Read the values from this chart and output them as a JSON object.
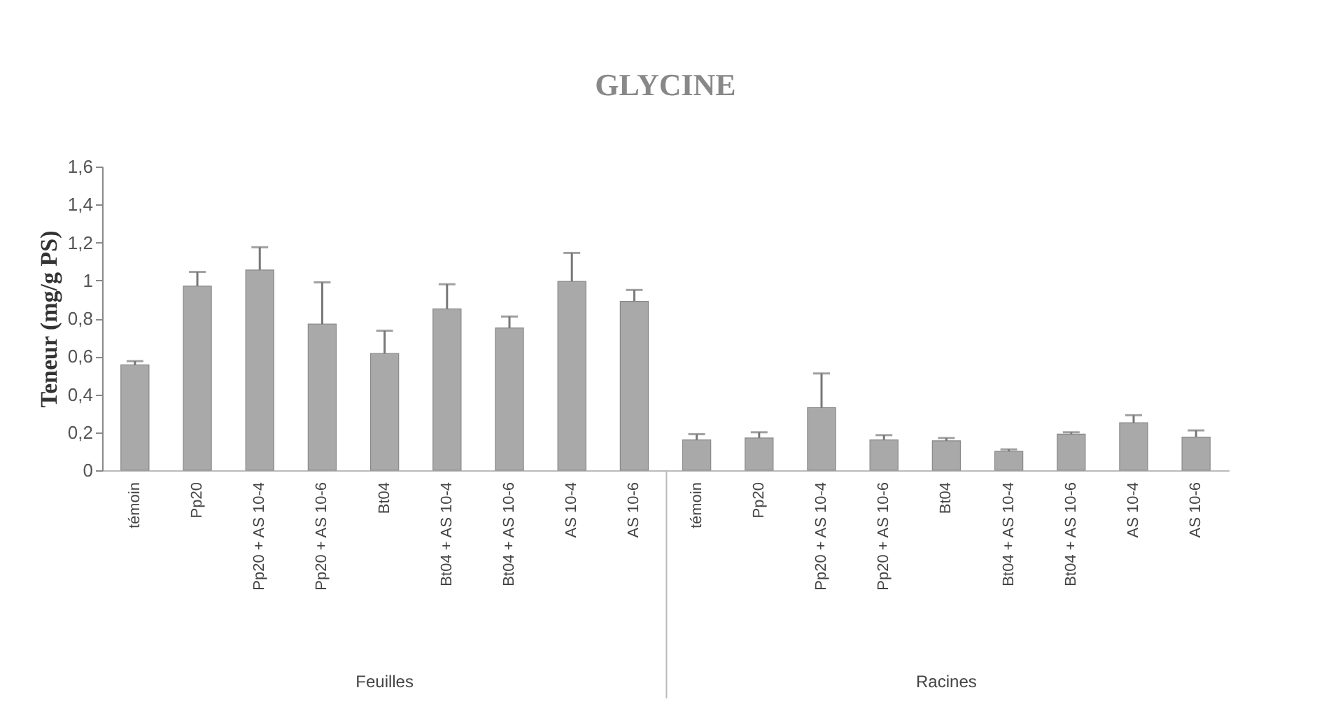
{
  "chart_data": {
    "type": "bar",
    "title": "GLYCINE",
    "ylabel": "Teneur (mg/g PS)",
    "categories": [
      "témoin",
      "Pp20",
      "Pp20 + AS 10-4",
      "Pp20 + AS 10-6",
      "Bt04",
      "Bt04 + AS 10-4",
      "Bt04 + AS 10-6",
      "AS 10-4",
      "AS 10-6",
      "témoin",
      "Pp20",
      "Pp20 + AS 10-4",
      "Pp20 + AS 10-6",
      "Bt04",
      "Bt04 + AS 10-4",
      "Bt04 + AS 10-6",
      "AS 10-4",
      "AS 10-6"
    ],
    "values": [
      0.555,
      0.97,
      1.055,
      0.77,
      0.615,
      0.85,
      0.75,
      0.995,
      0.89,
      0.16,
      0.17,
      0.33,
      0.16,
      0.155,
      0.1,
      0.19,
      0.25,
      0.175
    ],
    "errors": [
      [
        0.555,
        0.575
      ],
      [
        0.97,
        1.045
      ],
      [
        1.055,
        1.175
      ],
      [
        0.77,
        0.99
      ],
      [
        0.615,
        0.735
      ],
      [
        0.85,
        0.98
      ],
      [
        0.75,
        0.81
      ],
      [
        0.995,
        1.145
      ],
      [
        0.89,
        0.95
      ],
      [
        0.16,
        0.19
      ],
      [
        0.17,
        0.2
      ],
      [
        0.33,
        0.51
      ],
      [
        0.16,
        0.185
      ],
      [
        0.155,
        0.17
      ],
      [
        0.1,
        0.11
      ],
      [
        0.19,
        0.2
      ],
      [
        0.25,
        0.29
      ],
      [
        0.175,
        0.21
      ]
    ],
    "color": "#a9a9a9",
    "ylim": [
      0,
      1.6
    ],
    "yticks": [
      {
        "value": 0,
        "label": "0"
      },
      {
        "value": 0.2,
        "label": "0,2"
      },
      {
        "value": 0.4,
        "label": "0,4"
      },
      {
        "value": 0.6,
        "label": "0,6"
      },
      {
        "value": 0.8,
        "label": "0,8"
      },
      {
        "value": 1,
        "label": "1"
      },
      {
        "value": 1.2,
        "label": "1,2"
      },
      {
        "value": 1.4,
        "label": "1,4"
      },
      {
        "value": 1.6,
        "label": "1,6"
      }
    ],
    "annotations": [
      "Feuilles",
      "Racines"
    ],
    "grid": false
  }
}
